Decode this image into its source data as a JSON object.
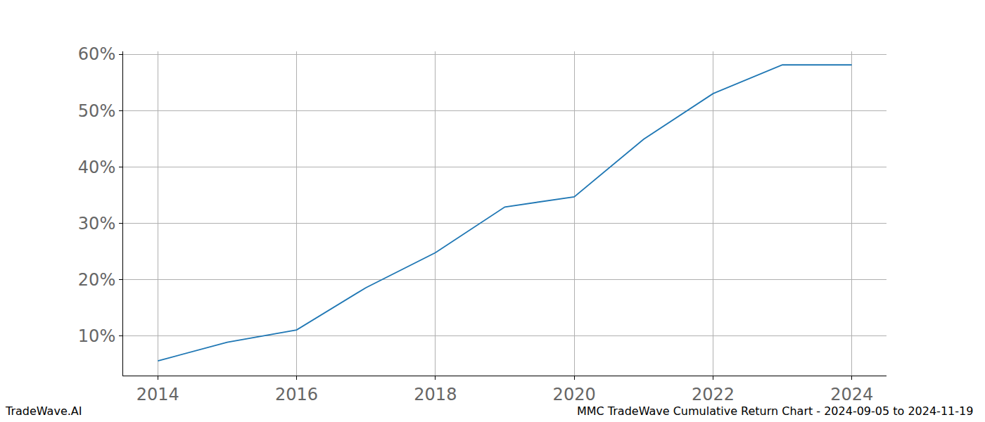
{
  "chart_data": {
    "type": "line",
    "title": "MMC TradeWave Cumulative Return Chart - 2024-09-05 to 2024-11-19",
    "credit": "TradeWave.AI",
    "x": [
      2014,
      2015,
      2016,
      2017,
      2018,
      2019,
      2020,
      2021,
      2022,
      2023,
      2024
    ],
    "values": [
      5.6,
      8.9,
      11.1,
      18.6,
      24.8,
      32.9,
      34.7,
      44.9,
      53.0,
      58.1,
      58.1
    ],
    "color": "#1f77b4",
    "xlim": [
      2013.5,
      2024.5
    ],
    "xticks": [
      2014,
      2016,
      2018,
      2020,
      2022,
      2024
    ],
    "ylim": [
      3.0,
      60.5
    ],
    "yticks": [
      {
        "value": 10,
        "label": "10%"
      },
      {
        "value": 20,
        "label": "20%"
      },
      {
        "value": 30,
        "label": "30%"
      },
      {
        "value": 40,
        "label": "40%"
      },
      {
        "value": 50,
        "label": "50%"
      },
      {
        "value": 60,
        "label": "60%"
      }
    ],
    "grid": true
  }
}
